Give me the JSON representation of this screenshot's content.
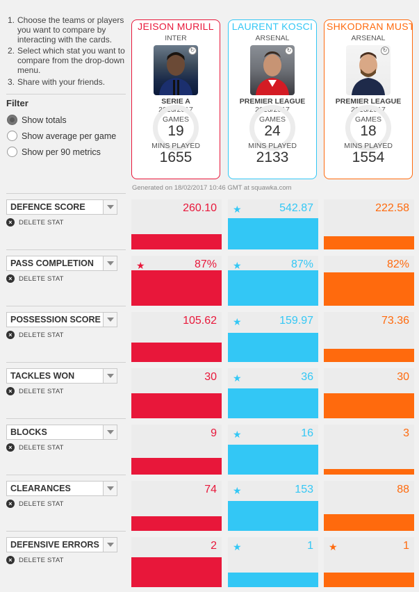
{
  "instructions": [
    {
      "num": "1.",
      "text": "Choose the teams or players you want to compare by interacting with the cards."
    },
    {
      "num": "2.",
      "text": "Select which stat you want to compare from the drop-down menu."
    },
    {
      "num": "3.",
      "text": "Share with your friends."
    }
  ],
  "filter": {
    "title": "Filter",
    "options": [
      {
        "label": "Show totals",
        "checked": true
      },
      {
        "label": "Show average per game",
        "checked": false
      },
      {
        "label": "Show per 90 metrics",
        "checked": false
      }
    ]
  },
  "players": [
    {
      "name": "JEISON MURILL",
      "club": "INTER",
      "league": "SERIE A",
      "season": "2016/2017",
      "games_label": "GAMES",
      "games": "19",
      "mins_label": "MINS PLAYED",
      "mins": "1655",
      "color": "#e8173a"
    },
    {
      "name": "LAURENT KOSCI",
      "club": "ARSENAL",
      "league": "PREMIER LEAGUE",
      "season": "2016/2017",
      "games_label": "GAMES",
      "games": "24",
      "mins_label": "MINS PLAYED",
      "mins": "2133",
      "color": "#33c7f5"
    },
    {
      "name": "SHKODRAN MUST",
      "club": "ARSENAL",
      "league": "PREMIER LEAGUE",
      "season": "2016/2017",
      "games_label": "GAMES",
      "games": "18",
      "mins_label": "MINS PLAYED",
      "mins": "1554",
      "color": "#ff6a0d"
    }
  ],
  "generated": "Generated on 18/02/2017 10:46 GMT at squawka.com",
  "delete_label": "DELETE STAT",
  "stats": [
    {
      "name": "DEFENCE SCORE",
      "values": [
        "260.10",
        "542.87",
        "222.58"
      ],
      "fill": [
        0.3,
        0.62,
        0.26
      ],
      "star": [
        false,
        true,
        false
      ]
    },
    {
      "name": "PASS COMPLETION",
      "values": [
        "87%",
        "87%",
        "82%"
      ],
      "fill": [
        0.71,
        0.71,
        0.67
      ],
      "star": [
        true,
        true,
        false
      ]
    },
    {
      "name": "POSSESSION SCORE",
      "values": [
        "105.62",
        "159.97",
        "73.36"
      ],
      "fill": [
        0.39,
        0.59,
        0.27
      ],
      "star": [
        false,
        true,
        false
      ]
    },
    {
      "name": "TACKLES WON",
      "values": [
        "30",
        "36",
        "30"
      ],
      "fill": [
        0.5,
        0.6,
        0.5
      ],
      "star": [
        false,
        true,
        false
      ]
    },
    {
      "name": "BLOCKS",
      "values": [
        "9",
        "16",
        "3"
      ],
      "fill": [
        0.34,
        0.6,
        0.11
      ],
      "star": [
        false,
        true,
        false
      ]
    },
    {
      "name": "CLEARANCES",
      "values": [
        "74",
        "153",
        "88"
      ],
      "fill": [
        0.29,
        0.6,
        0.34
      ],
      "star": [
        false,
        true,
        false
      ]
    },
    {
      "name": "DEFENSIVE ERRORS",
      "values": [
        "2",
        "1",
        "1"
      ],
      "fill": [
        0.6,
        0.29,
        0.29
      ],
      "star": [
        false,
        true,
        true
      ]
    }
  ]
}
